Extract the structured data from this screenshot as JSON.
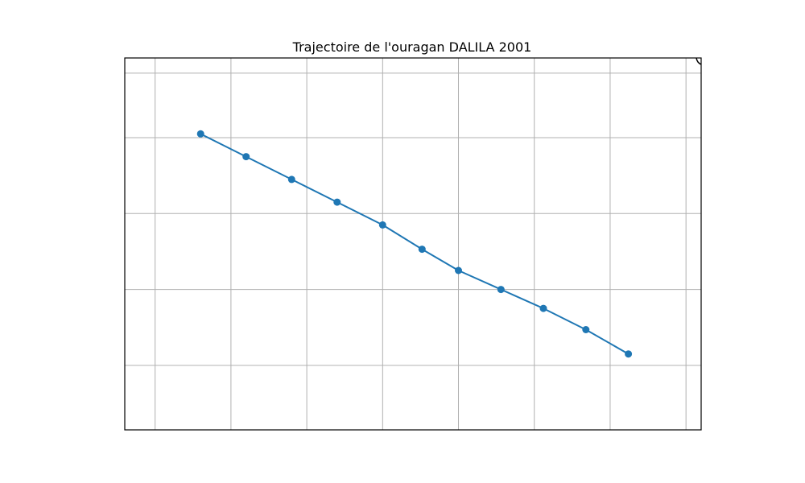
{
  "chart_data": {
    "type": "line",
    "title": "Trajectoire de l'ouragan DALILA 2001",
    "xlabel": "",
    "ylabel": "",
    "xlim": [
      -120.0,
      -101.0
    ],
    "ylim": [
      11.15,
      16.05
    ],
    "grid": true,
    "x_gridlines": [
      -119,
      -116.5,
      -114,
      -111.5,
      -109,
      -106.5,
      -104,
      -101.5
    ],
    "y_gridlines": [
      12.0,
      13.0,
      14.0,
      15.0,
      15.85
    ],
    "series": [
      {
        "color": "#1f77b4",
        "x": [
          -117.5,
          -116.0,
          -114.5,
          -113.0,
          -111.5,
          -110.2,
          -109.0,
          -107.6,
          -106.2,
          -104.8,
          -103.4
        ],
        "y": [
          15.05,
          14.75,
          14.45,
          14.15,
          13.85,
          13.53,
          13.25,
          13.0,
          12.75,
          12.47,
          12.15
        ]
      }
    ]
  }
}
